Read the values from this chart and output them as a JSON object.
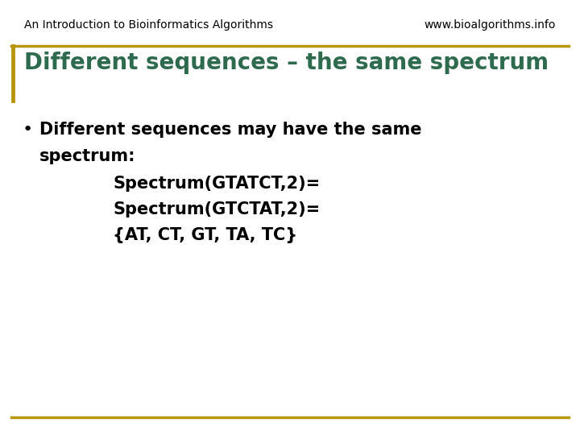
{
  "header_left": "An Introduction to Bioinformatics Algorithms",
  "header_right": "www.bioalgorithms.info",
  "title": "Different sequences – the same spectrum",
  "bullet_text_line1": "Different sequences may have the same",
  "bullet_text_line2": "spectrum:",
  "indented_line1": "Spectrum(GTATCT,2)=",
  "indented_line2": "Spectrum(GTCTAT,2)=",
  "indented_line3": "{AT, CT, GT, TA, TC}",
  "bg_color": "#ffffff",
  "header_color": "#000000",
  "title_color": "#2e6b4e",
  "gold_color": "#b8960c",
  "body_text_color": "#000000",
  "header_fontsize": 10,
  "title_fontsize": 20,
  "body_fontsize": 15,
  "indented_fontsize": 15
}
